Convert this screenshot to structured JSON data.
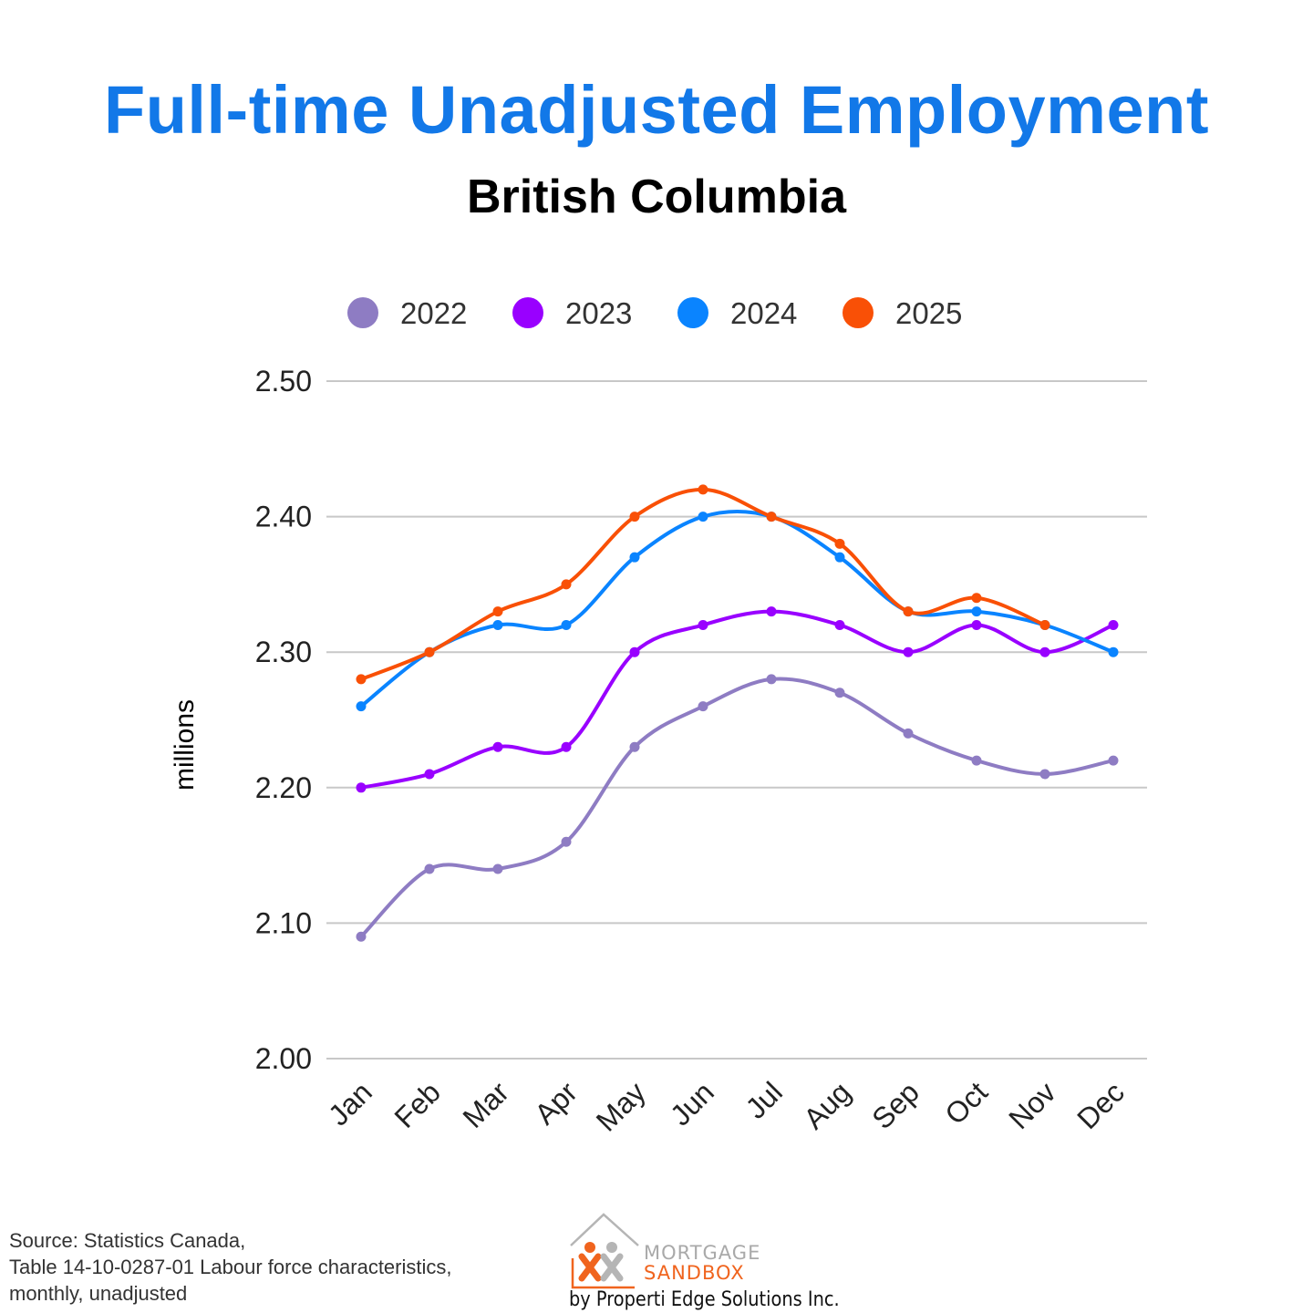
{
  "header": {
    "title": "Full-time Unadjusted Employment",
    "subtitle": "British Columbia"
  },
  "chart_data": {
    "type": "line",
    "title": "Full-time Unadjusted Employment",
    "subtitle": "British Columbia",
    "xlabel": "",
    "ylabel": "millions",
    "ylim": [
      2.0,
      2.5
    ],
    "yticks": [
      "2.50",
      "2.40",
      "2.30",
      "2.20",
      "2.10",
      "2.00"
    ],
    "grid": true,
    "legend_position": "top",
    "categories": [
      "Jan",
      "Feb",
      "Mar",
      "Apr",
      "May",
      "Jun",
      "Jul",
      "Aug",
      "Sep",
      "Oct",
      "Nov",
      "Dec"
    ],
    "series": [
      {
        "name": "2022",
        "color": "#8e7cc3",
        "values": [
          2.09,
          2.14,
          2.14,
          2.16,
          2.23,
          2.26,
          2.28,
          2.27,
          2.24,
          2.22,
          2.21,
          2.22
        ]
      },
      {
        "name": "2023",
        "color": "#9900ff",
        "values": [
          2.2,
          2.21,
          2.23,
          2.23,
          2.3,
          2.32,
          2.33,
          2.32,
          2.3,
          2.32,
          2.3,
          2.32
        ]
      },
      {
        "name": "2024",
        "color": "#0a84ff",
        "values": [
          2.26,
          2.3,
          2.32,
          2.32,
          2.37,
          2.4,
          2.4,
          2.37,
          2.33,
          2.33,
          2.32,
          2.3
        ]
      },
      {
        "name": "2025",
        "color": "#f95006",
        "values": [
          2.28,
          2.3,
          2.33,
          2.35,
          2.4,
          2.42,
          2.4,
          2.38,
          2.33,
          2.34,
          2.32,
          null
        ]
      }
    ]
  },
  "footer": {
    "source_lines": [
      "Source: Statistics Canada,",
      "Table 14-10-0287-01  Labour force characteristics,",
      "monthly, unadjusted"
    ],
    "logo": {
      "line1": "MORTGAGE",
      "line2": "SANDBOX",
      "tagline": "by Properti Edge Solutions Inc."
    }
  }
}
